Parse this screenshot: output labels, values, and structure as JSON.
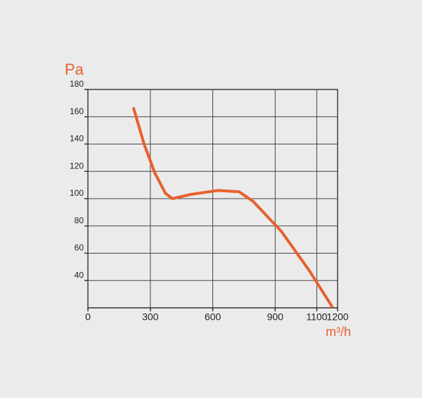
{
  "chart_data": {
    "type": "line",
    "ylabel": "Pa",
    "xlabel": "m³/h",
    "xlim": [
      0,
      1200
    ],
    "xticks": [
      0,
      300,
      600,
      900,
      1100,
      1200
    ],
    "ylim": [
      20,
      180
    ],
    "yticks": [
      40,
      60,
      80,
      100,
      120,
      140,
      160,
      180
    ],
    "grid": true,
    "series": [
      {
        "color": "#e8602c",
        "x": [
          220,
          270,
          321,
          372,
          406,
          490,
          625,
          727,
          794,
          930,
          1065,
          1173
        ],
        "values": [
          166,
          140,
          119,
          104,
          100,
          103,
          106,
          105,
          98,
          76,
          47,
          21
        ]
      }
    ]
  }
}
